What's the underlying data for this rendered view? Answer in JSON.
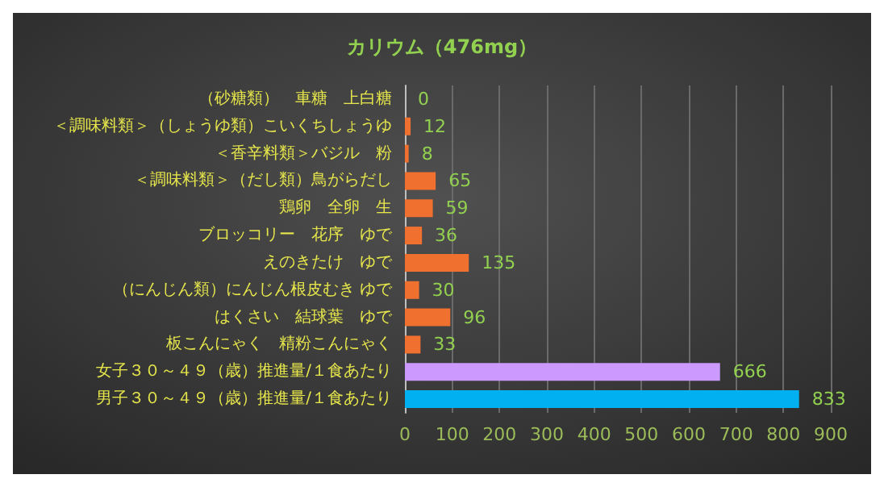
{
  "chart_data": {
    "type": "bar",
    "orientation": "horizontal",
    "title": "カリウム（476mg）",
    "categories": [
      "（砂糖類）　車糖　上白糖",
      "＜調味料類＞（しょうゆ類）こいくちしょうゆ",
      "＜香辛料類＞バジル　粉",
      "＜調味料類＞（だし類）鳥がらだし",
      "鶏卵　全卵　生",
      "ブロッコリー　花序　ゆで",
      "えのきたけ　ゆで",
      "（にんじん類）にんじん根皮むき ゆで",
      "はくさい　結球葉　ゆで",
      "板こんにゃく　精粉こんにゃく",
      "女子３０～４９（歳）推進量/１食あたり",
      "男子３０～４９（歳）推進量/１食あたり"
    ],
    "values": [
      0,
      12,
      8,
      65,
      59,
      36,
      135,
      30,
      96,
      33,
      666,
      833
    ],
    "colors": [
      "#f07030",
      "#f07030",
      "#f07030",
      "#f07030",
      "#f07030",
      "#f07030",
      "#f07030",
      "#f07030",
      "#f07030",
      "#f07030",
      "#cc99ff",
      "#00b0f0"
    ],
    "xlim": [
      0,
      900
    ],
    "xticks": [
      0,
      100,
      200,
      300,
      400,
      500,
      600,
      700,
      800,
      900
    ],
    "grid": "x",
    "data_labels": true
  }
}
